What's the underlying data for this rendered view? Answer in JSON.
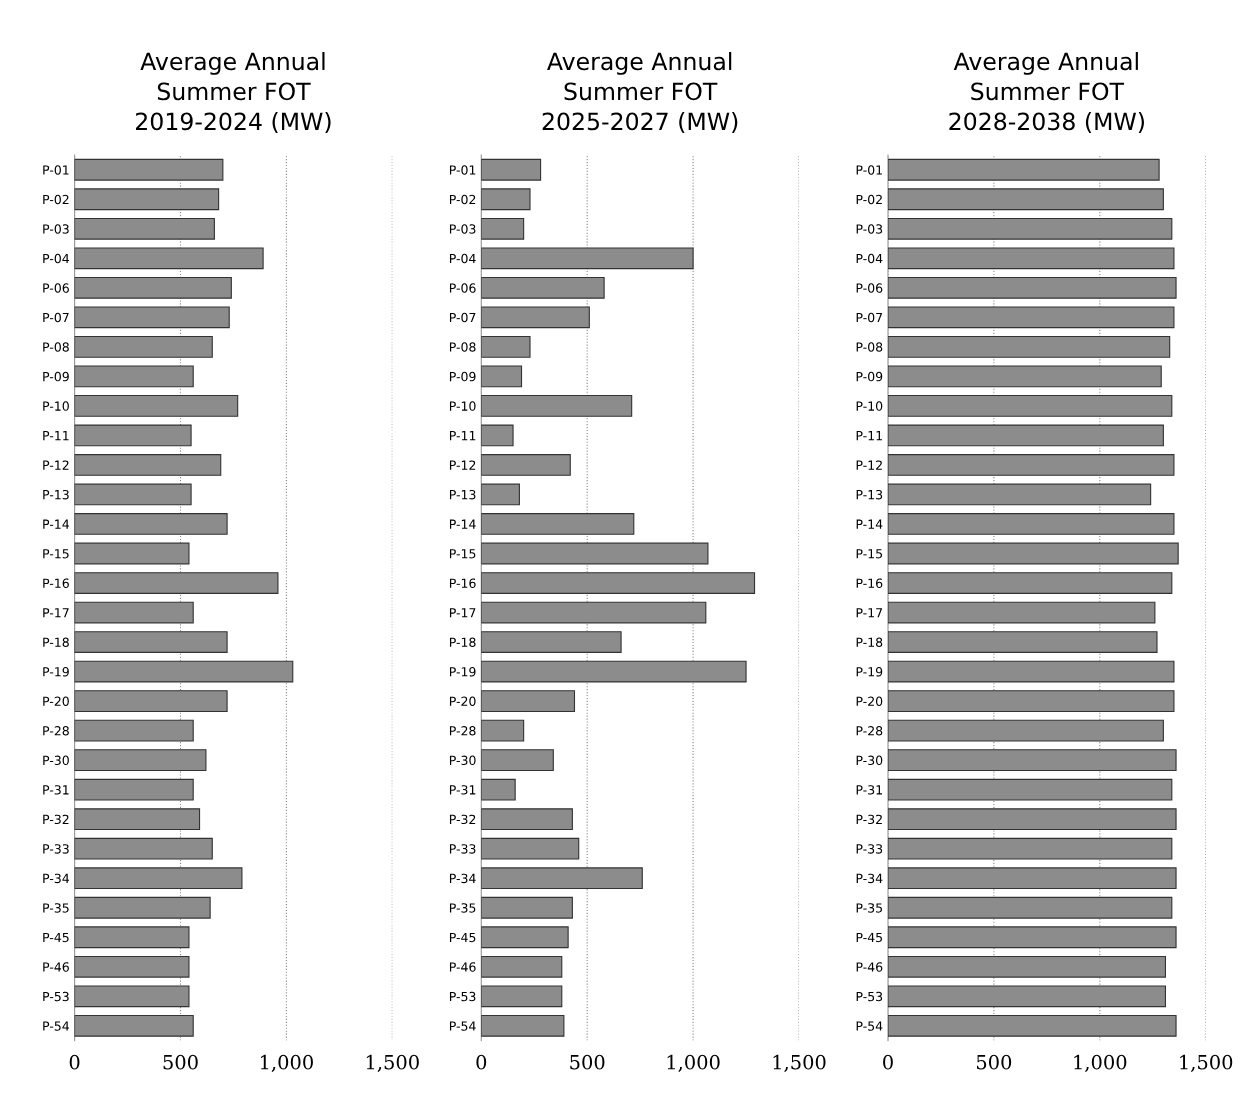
{
  "chart_data": [
    {
      "type": "bar",
      "orientation": "horizontal",
      "title": "Average Annual\nSummer FOT\n2019-2024 (MW)",
      "categories": [
        "P-01",
        "P-02",
        "P-03",
        "P-04",
        "P-06",
        "P-07",
        "P-08",
        "P-09",
        "P-10",
        "P-11",
        "P-12",
        "P-13",
        "P-14",
        "P-15",
        "P-16",
        "P-17",
        "P-18",
        "P-19",
        "P-20",
        "P-28",
        "P-30",
        "P-31",
        "P-32",
        "P-33",
        "P-34",
        "P-35",
        "P-45",
        "P-46",
        "P-53",
        "P-54"
      ],
      "values": [
        700,
        680,
        660,
        890,
        740,
        730,
        650,
        560,
        770,
        550,
        690,
        550,
        720,
        540,
        960,
        560,
        720,
        1030,
        720,
        560,
        620,
        560,
        590,
        650,
        790,
        640,
        540,
        540,
        540,
        560
      ],
      "color": "#8c8c8c",
      "xlim": [
        0,
        1500
      ],
      "xticks": [
        0,
        {
          "value": 500,
          "label": "500"
        },
        {
          "value": 1000,
          "label": "1,000"
        },
        {
          "value": 1500,
          "label": "1,500"
        }
      ],
      "grid": "x"
    },
    {
      "type": "bar",
      "orientation": "horizontal",
      "title": "Average Annual\nSummer FOT\n2025-2027 (MW)",
      "categories": [
        "P-01",
        "P-02",
        "P-03",
        "P-04",
        "P-06",
        "P-07",
        "P-08",
        "P-09",
        "P-10",
        "P-11",
        "P-12",
        "P-13",
        "P-14",
        "P-15",
        "P-16",
        "P-17",
        "P-18",
        "P-19",
        "P-20",
        "P-28",
        "P-30",
        "P-31",
        "P-32",
        "P-33",
        "P-34",
        "P-35",
        "P-45",
        "P-46",
        "P-53",
        "P-54"
      ],
      "values": [
        280,
        230,
        200,
        1000,
        580,
        510,
        230,
        190,
        710,
        150,
        420,
        180,
        720,
        1070,
        1290,
        1060,
        660,
        1250,
        440,
        200,
        340,
        160,
        430,
        460,
        760,
        430,
        410,
        380,
        380,
        390
      ],
      "color": "#8c8c8c",
      "xlim": [
        0,
        1500
      ],
      "xticks": [
        0,
        {
          "value": 500,
          "label": "500"
        },
        {
          "value": 1000,
          "label": "1,000"
        },
        {
          "value": 1500,
          "label": "1,500"
        }
      ],
      "grid": "x"
    },
    {
      "type": "bar",
      "orientation": "horizontal",
      "title": "Average Annual\nSummer FOT\n2028-2038 (MW)",
      "categories": [
        "P-01",
        "P-02",
        "P-03",
        "P-04",
        "P-06",
        "P-07",
        "P-08",
        "P-09",
        "P-10",
        "P-11",
        "P-12",
        "P-13",
        "P-14",
        "P-15",
        "P-16",
        "P-17",
        "P-18",
        "P-19",
        "P-20",
        "P-28",
        "P-30",
        "P-31",
        "P-32",
        "P-33",
        "P-34",
        "P-35",
        "P-45",
        "P-46",
        "P-53",
        "P-54"
      ],
      "values": [
        1280,
        1300,
        1340,
        1350,
        1360,
        1350,
        1330,
        1290,
        1340,
        1300,
        1350,
        1240,
        1350,
        1370,
        1340,
        1260,
        1270,
        1350,
        1350,
        1300,
        1360,
        1340,
        1360,
        1340,
        1360,
        1340,
        1360,
        1310,
        1310,
        1360
      ],
      "color": "#8c8c8c",
      "xlim": [
        0,
        1500
      ],
      "xticks": [
        0,
        {
          "value": 500,
          "label": "500"
        },
        {
          "value": 1000,
          "label": "1,000"
        },
        {
          "value": 1500,
          "label": "1,500"
        }
      ],
      "grid": "x"
    }
  ]
}
